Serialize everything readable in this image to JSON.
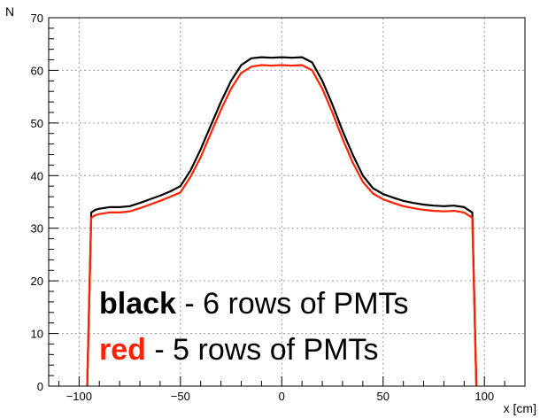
{
  "chart_data": {
    "type": "line",
    "title": "",
    "xlabel": "x [cm]",
    "ylabel": "N",
    "xlim": [
      -115,
      120
    ],
    "ylim": [
      0,
      70
    ],
    "x_ticks": [
      -100,
      -50,
      0,
      50,
      100
    ],
    "y_ticks": [
      0,
      10,
      20,
      30,
      40,
      50,
      60,
      70
    ],
    "grid": true,
    "x": [
      -96,
      -94,
      -92,
      -90,
      -85,
      -80,
      -75,
      -70,
      -65,
      -60,
      -55,
      -50,
      -45,
      -40,
      -35,
      -30,
      -25,
      -20,
      -15,
      -10,
      -5,
      0,
      5,
      10,
      15,
      20,
      25,
      30,
      35,
      40,
      45,
      50,
      55,
      60,
      65,
      70,
      75,
      80,
      85,
      90,
      92,
      94,
      96
    ],
    "series": [
      {
        "name": "black",
        "color": "#000000",
        "values": [
          0,
          33,
          33.5,
          33.7,
          34,
          34,
          34.2,
          34.8,
          35.5,
          36.2,
          37,
          38,
          41,
          45,
          49.5,
          54,
          58,
          61,
          62.3,
          62.5,
          62.4,
          62.5,
          62.4,
          62.5,
          61.5,
          58,
          53.5,
          48.5,
          44,
          40,
          37.6,
          36.5,
          35.8,
          35.2,
          34.8,
          34.5,
          34.3,
          34.2,
          34.3,
          34,
          33.5,
          33,
          0
        ]
      },
      {
        "name": "red",
        "color": "#ff2200",
        "values": [
          0,
          32,
          32.5,
          32.7,
          33,
          33,
          33.2,
          33.8,
          34.5,
          35.2,
          36,
          36.8,
          39.8,
          43.5,
          48,
          52.5,
          56.5,
          59.5,
          60.7,
          61,
          60.9,
          61,
          60.9,
          61,
          60,
          56.5,
          52,
          47,
          42.5,
          38.8,
          36.6,
          35.5,
          34.8,
          34.2,
          33.8,
          33.5,
          33.3,
          33.2,
          33.3,
          33,
          32.5,
          32,
          0
        ]
      }
    ],
    "legend": {
      "placement": "bottom-center",
      "lines": [
        {
          "key": "black",
          "text": " - 6 rows of PMTs",
          "color": "#000000"
        },
        {
          "key": "red",
          "text": " - 5 rows of PMTs",
          "color": "#ff2200"
        }
      ]
    }
  }
}
